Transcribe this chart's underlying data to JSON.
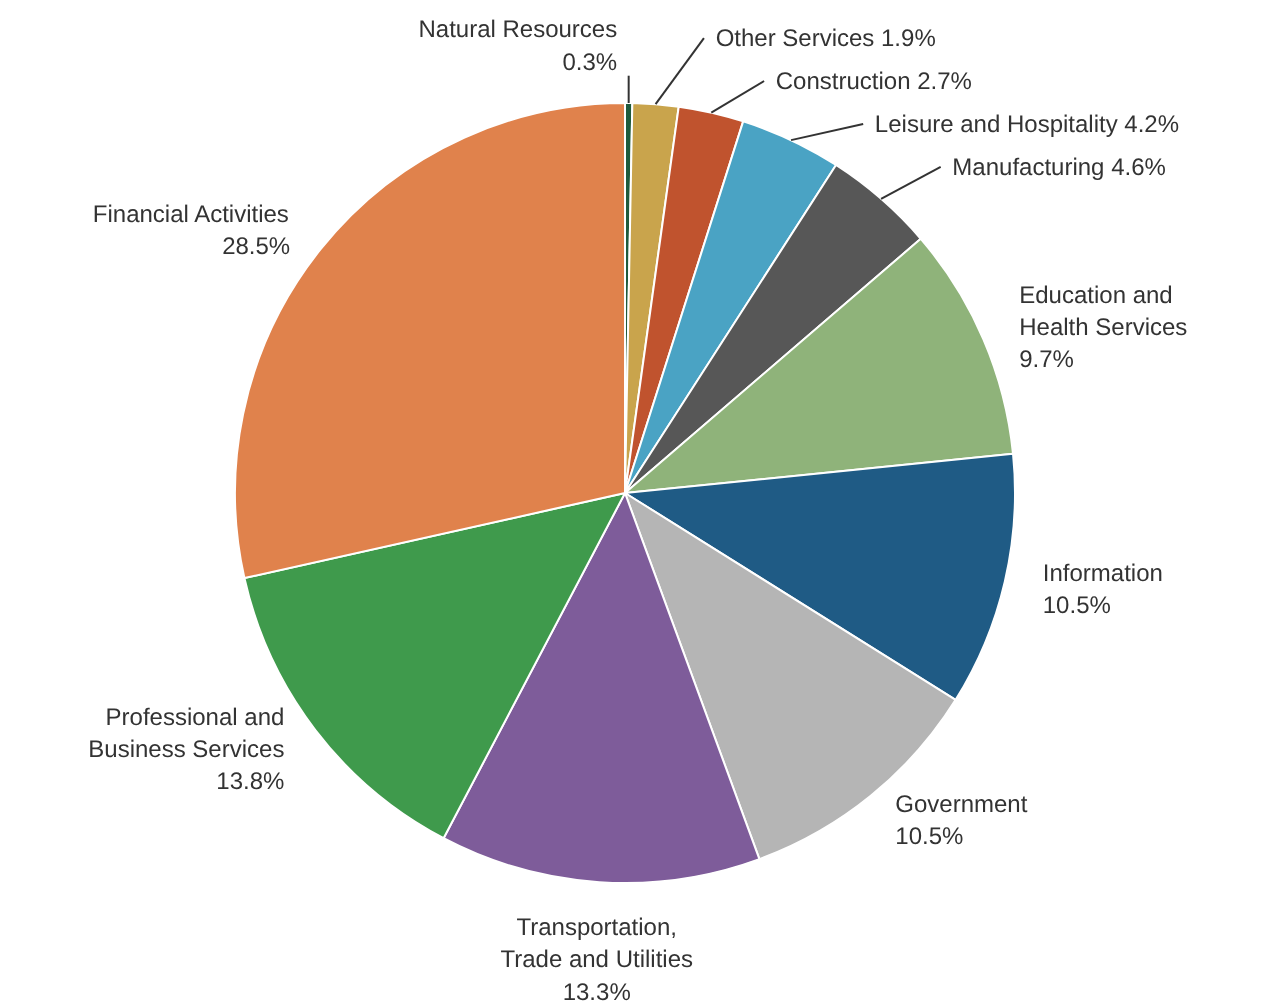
{
  "chart_data": {
    "type": "pie",
    "categories": [
      "Natural Resources",
      "Other Services",
      "Construction",
      "Leisure and Hospitality",
      "Manufacturing",
      "Education and Health Services",
      "Information",
      "Government",
      "Transportation, Trade and Utilities",
      "Professional and Business Services",
      "Financial Activities"
    ],
    "values": [
      0.3,
      1.9,
      2.7,
      4.2,
      4.6,
      9.7,
      10.5,
      10.5,
      13.3,
      13.8,
      28.5
    ],
    "value_labels": [
      "0.3%",
      "1.9%",
      "2.7%",
      "4.2%",
      "4.6%",
      "9.7%",
      "10.5%",
      "10.5%",
      "13.3%",
      "13.8%",
      "28.5%"
    ],
    "colors": [
      "#1e5a3c",
      "#c9a44c",
      "#c0532e",
      "#4aa3c4",
      "#575757",
      "#8fb37a",
      "#1f5b85",
      "#b5b5b5",
      "#7e5c9a",
      "#3f9a4c",
      "#e0824c"
    ]
  }
}
